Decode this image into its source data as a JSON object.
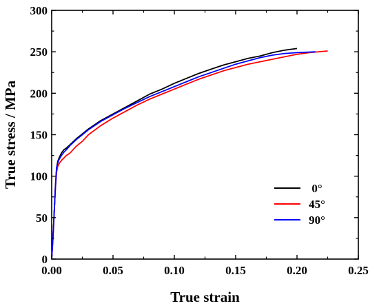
{
  "chart_data": {
    "type": "line",
    "xlabel": "True strain",
    "ylabel": "True stress / MPa",
    "xlim": [
      0.0,
      0.25
    ],
    "ylim": [
      0,
      300
    ],
    "xticks": [
      0.0,
      0.05,
      0.1,
      0.15,
      0.2,
      0.25
    ],
    "xtick_labels": [
      "0.00",
      "0.05",
      "0.10",
      "0.15",
      "0.20",
      "0.25"
    ],
    "yticks": [
      0,
      50,
      100,
      150,
      200,
      250,
      300
    ],
    "ytick_labels": [
      "0",
      "50",
      "100",
      "150",
      "200",
      "250",
      "300"
    ],
    "grid": false,
    "legend_position": "right",
    "series": [
      {
        "name": "0°",
        "color": "#000000",
        "x": [
          0.0,
          0.001,
          0.002,
          0.003,
          0.004,
          0.005,
          0.006,
          0.008,
          0.01,
          0.012,
          0.015,
          0.02,
          0.025,
          0.03,
          0.04,
          0.05,
          0.06,
          0.07,
          0.08,
          0.09,
          0.1,
          0.11,
          0.12,
          0.13,
          0.14,
          0.15,
          0.16,
          0.17,
          0.18,
          0.19,
          0.2
        ],
        "y": [
          0,
          25,
          55,
          85,
          110,
          118,
          122,
          128,
          132,
          134,
          138,
          145,
          151,
          157,
          167,
          175,
          183,
          191,
          199,
          205,
          212,
          218,
          224,
          229,
          234,
          238,
          242,
          245,
          249,
          252,
          254
        ]
      },
      {
        "name": "45°",
        "color": "#ff0000",
        "x": [
          0.0,
          0.001,
          0.002,
          0.003,
          0.004,
          0.005,
          0.006,
          0.008,
          0.01,
          0.012,
          0.015,
          0.02,
          0.025,
          0.03,
          0.04,
          0.05,
          0.06,
          0.07,
          0.08,
          0.09,
          0.1,
          0.11,
          0.12,
          0.13,
          0.14,
          0.15,
          0.16,
          0.17,
          0.18,
          0.19,
          0.2,
          0.21,
          0.225
        ],
        "y": [
          0,
          25,
          55,
          85,
          105,
          112,
          115,
          119,
          122,
          125,
          128,
          136,
          142,
          150,
          161,
          170,
          178,
          186,
          193,
          199,
          205,
          211,
          217,
          222,
          227,
          231,
          235,
          238,
          241,
          244,
          247,
          249,
          251
        ]
      },
      {
        "name": "90°",
        "color": "#0000ff",
        "x": [
          0.0,
          0.001,
          0.002,
          0.003,
          0.004,
          0.005,
          0.006,
          0.008,
          0.01,
          0.012,
          0.015,
          0.02,
          0.025,
          0.03,
          0.04,
          0.05,
          0.06,
          0.07,
          0.08,
          0.09,
          0.1,
          0.11,
          0.12,
          0.13,
          0.14,
          0.15,
          0.16,
          0.17,
          0.18,
          0.19,
          0.2,
          0.215
        ],
        "y": [
          0,
          25,
          55,
          85,
          110,
          116,
          120,
          125,
          129,
          132,
          137,
          144,
          150,
          156,
          166,
          174,
          182,
          189,
          196,
          202,
          208,
          214,
          220,
          225,
          230,
          235,
          239,
          243,
          246,
          248,
          249,
          250
        ]
      }
    ]
  }
}
